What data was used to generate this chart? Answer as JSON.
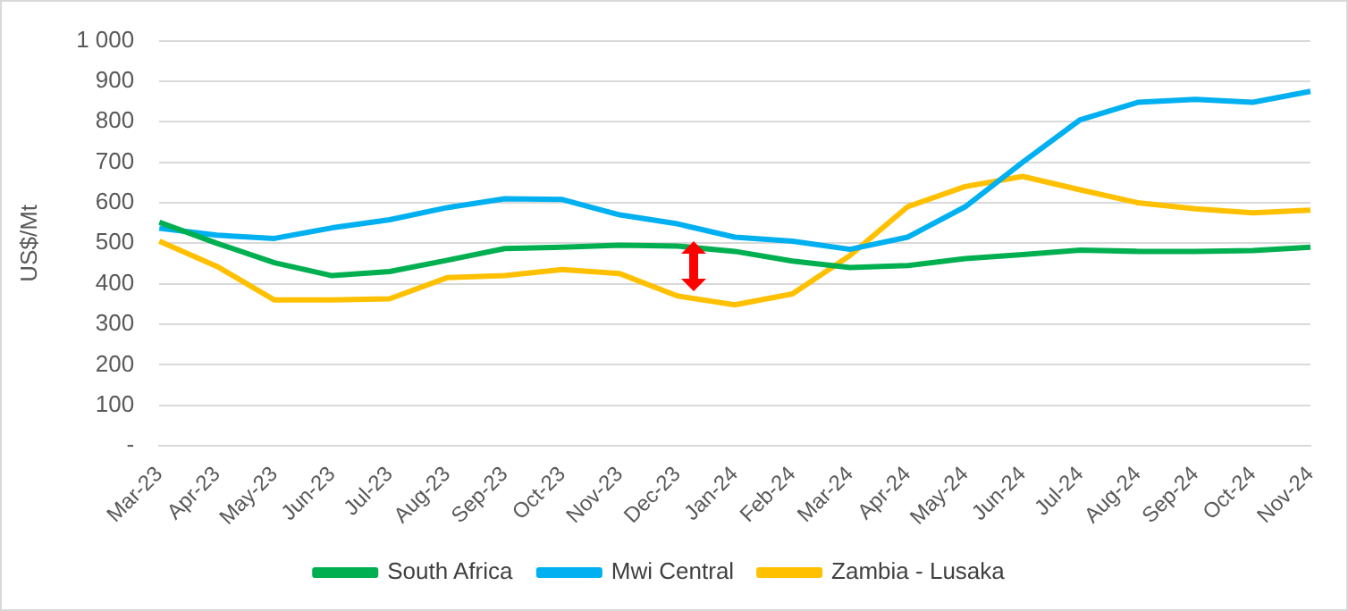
{
  "chart_data": {
    "type": "line",
    "ylabel": "US$/Mt",
    "categories": [
      "Mar-23",
      "Apr-23",
      "May-23",
      "Jun-23",
      "Jul-23",
      "Aug-23",
      "Sep-23",
      "Oct-23",
      "Nov-23",
      "Dec-23",
      "Jan-24",
      "Feb-24",
      "Mar-24",
      "Apr-24",
      "May-24",
      "Jun-24",
      "Jul-24",
      "Aug-24",
      "Sep-24",
      "Oct-24",
      "Nov-24"
    ],
    "series": [
      {
        "name": "South Africa",
        "color": "#00b050",
        "values": [
          552,
          500,
          452,
          420,
          430,
          458,
          487,
          490,
          495,
          493,
          480,
          456,
          440,
          445,
          462,
          472,
          483,
          480,
          480,
          482,
          490
        ]
      },
      {
        "name": "Mwi Central",
        "color": "#00b0f0",
        "values": [
          537,
          520,
          512,
          538,
          558,
          588,
          610,
          608,
          570,
          548,
          515,
          505,
          485,
          515,
          590,
          700,
          805,
          848,
          855,
          848,
          875
        ]
      },
      {
        "name": "Zambia - Lusaka",
        "color": "#ffc000",
        "values": [
          505,
          443,
          360,
          360,
          363,
          415,
          420,
          435,
          425,
          370,
          348,
          375,
          470,
          590,
          640,
          665,
          632,
          600,
          585,
          575,
          582
        ]
      }
    ],
    "ylim": [
      0,
      1000
    ],
    "yticks": [
      {
        "value": 0,
        "label": "-"
      },
      100,
      200,
      300,
      400,
      500,
      600,
      700,
      800,
      900,
      {
        "value": 1000,
        "label": "1 000"
      }
    ],
    "grid": "y",
    "legend": "bottom",
    "marker": "none",
    "line_style": "solid"
  }
}
